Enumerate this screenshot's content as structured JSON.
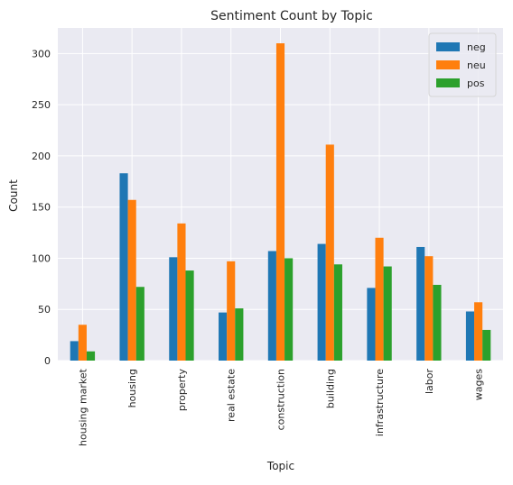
{
  "chart_data": {
    "type": "bar",
    "title": "Sentiment Count by Topic",
    "xlabel": "Topic",
    "ylabel": "Count",
    "ylim": [
      0,
      325
    ],
    "yticks": [
      0,
      50,
      100,
      150,
      200,
      250,
      300
    ],
    "grid": true,
    "legend_position": "top-right",
    "categories": [
      "housing market",
      "housing",
      "property",
      "real estate",
      "construction",
      "building",
      "infrastructure",
      "labor",
      "wages"
    ],
    "series": [
      {
        "name": "neg",
        "color": "#1f77b4",
        "values": [
          19,
          183,
          101,
          47,
          107,
          114,
          71,
          111,
          48
        ]
      },
      {
        "name": "neu",
        "color": "#ff7f0e",
        "values": [
          35,
          157,
          134,
          97,
          310,
          211,
          120,
          102,
          57
        ]
      },
      {
        "name": "pos",
        "color": "#2ca02c",
        "values": [
          9,
          72,
          88,
          51,
          100,
          94,
          92,
          74,
          30
        ]
      }
    ],
    "colors": {
      "background": "#eaeaf2",
      "grid": "#ffffff"
    }
  }
}
